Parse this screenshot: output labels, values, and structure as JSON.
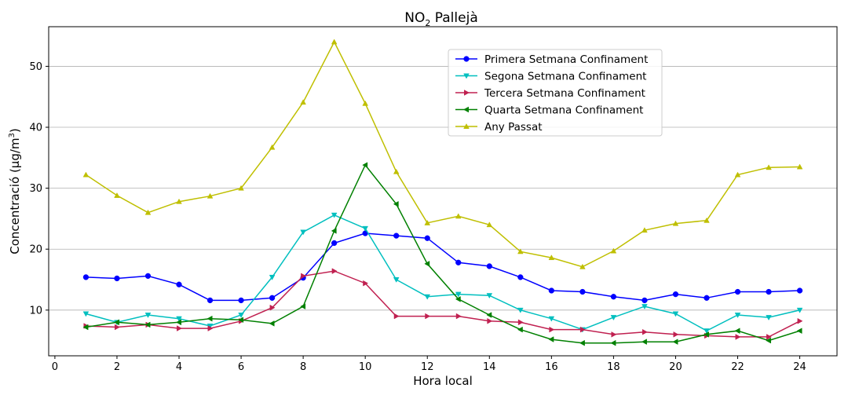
{
  "chart_data": {
    "type": "line",
    "title": "NO",
    "title_sub": "2",
    "title_suffix": " Pallejà",
    "xlabel": "Hora local",
    "ylabel": "Concentració (µg/m",
    "ylabel_sup": "3",
    "ylabel_suffix": ")",
    "xlim": [
      -0.2,
      25.2
    ],
    "ylim": [
      2.5,
      56.5
    ],
    "xticks": [
      0,
      2,
      4,
      6,
      8,
      10,
      12,
      14,
      16,
      18,
      20,
      22,
      24
    ],
    "yticks": [
      10,
      20,
      30,
      40,
      50
    ],
    "grid": "horizontal",
    "legend_position": "upper-right",
    "x": [
      1,
      2,
      3,
      4,
      5,
      6,
      7,
      8,
      9,
      10,
      11,
      12,
      13,
      14,
      15,
      16,
      17,
      18,
      19,
      20,
      21,
      22,
      23,
      24
    ],
    "series": [
      {
        "name": "Primera Setmana Confinament",
        "color": "#0000ff",
        "marker": "circle",
        "values": [
          15.4,
          15.2,
          15.6,
          14.2,
          11.6,
          11.6,
          12.0,
          15.3,
          21.0,
          22.6,
          22.2,
          21.8,
          17.8,
          17.2,
          15.4,
          13.2,
          13.0,
          12.2,
          11.6,
          12.6,
          12.0,
          13.0,
          13.0,
          13.2
        ]
      },
      {
        "name": "Segona Setmana Confinament",
        "color": "#00bfbf",
        "marker": "triangle-down",
        "values": [
          9.4,
          8.0,
          9.2,
          8.6,
          7.4,
          9.2,
          15.4,
          22.8,
          25.6,
          23.4,
          15.0,
          12.2,
          12.6,
          12.4,
          10.0,
          8.6,
          6.8,
          8.8,
          10.6,
          9.4,
          6.6,
          9.2,
          8.8,
          10.0
        ]
      },
      {
        "name": "Tercera Setmana Confinament",
        "color": "#c02050",
        "marker": "triangle-right",
        "values": [
          7.4,
          7.2,
          7.6,
          7.0,
          7.0,
          8.2,
          10.4,
          15.6,
          16.4,
          14.4,
          9.0,
          9.0,
          9.0,
          8.2,
          8.0,
          6.8,
          6.8,
          6.0,
          6.4,
          6.0,
          5.8,
          5.6,
          5.6,
          8.2
        ]
      },
      {
        "name": "Quarta Setmana Confinament",
        "color": "#008000",
        "marker": "triangle-left",
        "values": [
          7.2,
          8.0,
          7.6,
          8.0,
          8.6,
          8.4,
          7.8,
          10.6,
          23.0,
          33.8,
          27.4,
          17.6,
          11.8,
          9.2,
          6.8,
          5.2,
          4.6,
          4.6,
          4.8,
          4.8,
          6.0,
          6.6,
          5.0,
          6.6
        ]
      },
      {
        "name": "Any Passat",
        "color": "#bfbf00",
        "marker": "triangle-up",
        "values": [
          32.2,
          28.8,
          26.0,
          27.8,
          28.7,
          30.0,
          36.7,
          44.1,
          54.0,
          43.9,
          32.7,
          24.3,
          25.4,
          24.0,
          19.6,
          18.6,
          17.1,
          19.7,
          23.1,
          24.2,
          24.7,
          32.2,
          33.4,
          33.5
        ]
      }
    ]
  }
}
